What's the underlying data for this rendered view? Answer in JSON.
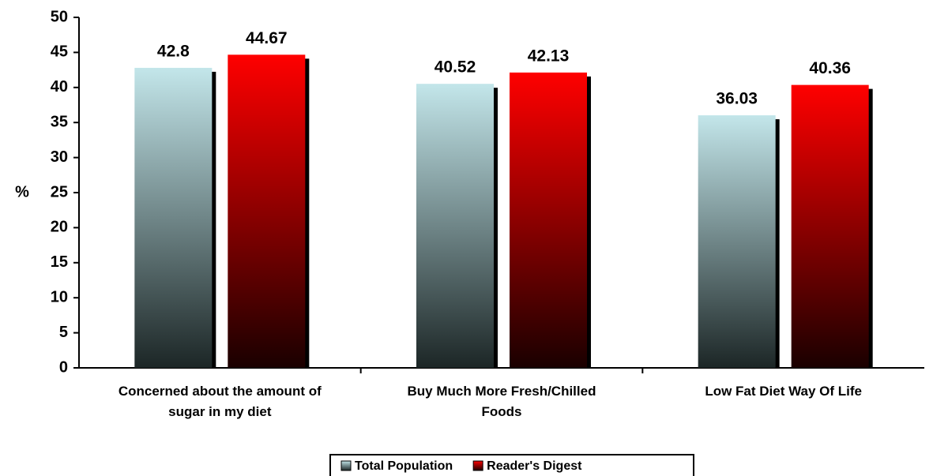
{
  "chart_data": {
    "type": "bar",
    "y_label": "%",
    "categories": [
      "Concerned about the amount of\nsugar in my diet",
      "Buy Much More Fresh/Chilled\nFoods",
      "Low Fat Diet Way Of Life"
    ],
    "series": [
      {
        "name": "Total Population",
        "color": "#c3e6ea",
        "values": [
          42.8,
          40.52,
          36.03
        ]
      },
      {
        "name": "Reader's Digest",
        "color": "#ff0000",
        "values": [
          44.67,
          42.13,
          40.36
        ]
      }
    ],
    "ylim": [
      0,
      50
    ],
    "yticks": [
      0,
      5,
      10,
      15,
      20,
      25,
      30,
      35,
      40,
      45,
      50
    ],
    "legend": "bottom"
  }
}
